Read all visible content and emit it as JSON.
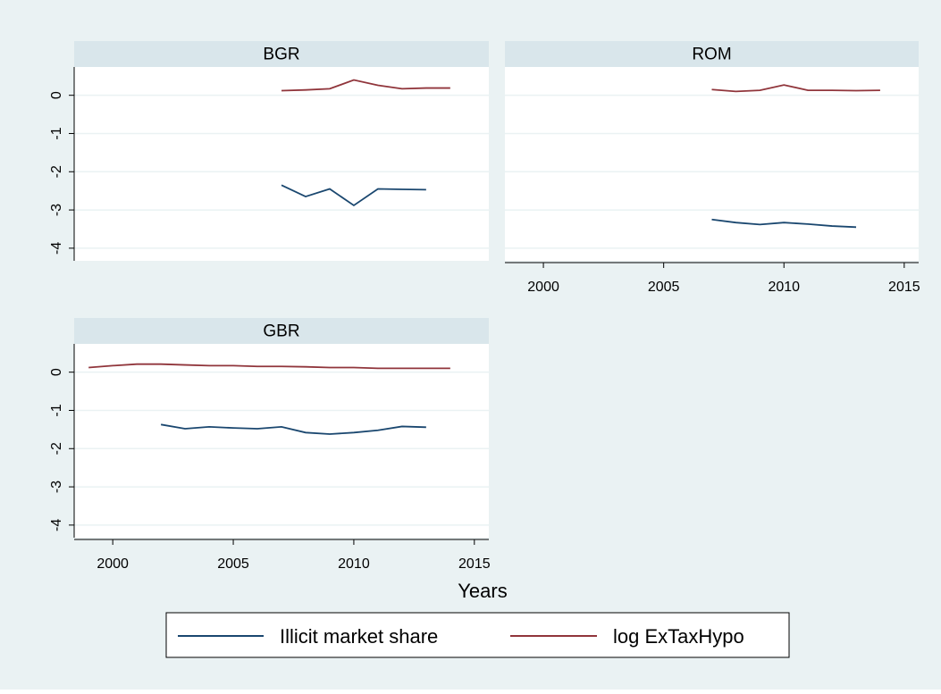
{
  "chart_data": [
    {
      "type": "line",
      "title": "BGR",
      "x": [
        2007,
        2008,
        2009,
        2010,
        2011,
        2012,
        2013,
        2014
      ],
      "series": [
        {
          "name": "Illicit market share",
          "color": "#1a476f",
          "values": [
            -2.35,
            -2.65,
            -2.45,
            -2.88,
            -2.45,
            -2.46,
            -2.47,
            null
          ]
        },
        {
          "name": "log ExTaxHypo",
          "color": "#90353b",
          "values": [
            0.12,
            0.14,
            0.17,
            0.4,
            0.26,
            0.17,
            0.19,
            0.19
          ]
        }
      ],
      "xlim": [
        1998.4,
        2015.6
      ],
      "ylim": [
        -4.33,
        0.74
      ],
      "yticks": [
        0,
        -1,
        -2,
        -3,
        -4
      ],
      "grid": true
    },
    {
      "type": "line",
      "title": "ROM",
      "x": [
        2007,
        2008,
        2009,
        2010,
        2011,
        2012,
        2013,
        2014
      ],
      "series": [
        {
          "name": "Illicit market share",
          "color": "#1a476f",
          "values": [
            -3.25,
            -3.33,
            -3.38,
            -3.33,
            -3.37,
            -3.42,
            -3.45,
            null
          ]
        },
        {
          "name": "log ExTaxHypo",
          "color": "#90353b",
          "values": [
            0.15,
            0.1,
            0.13,
            0.27,
            0.13,
            0.13,
            0.12,
            0.13
          ]
        }
      ],
      "xlim": [
        1998.4,
        2015.6
      ],
      "xticks": [
        2000,
        2005,
        2010,
        2015
      ],
      "ylim": [
        -4.33,
        0.74
      ],
      "yticks": [
        0,
        -1,
        -2,
        -3,
        -4
      ],
      "grid": true
    },
    {
      "type": "line",
      "title": "GBR",
      "xlabel": "Years",
      "x": [
        1999,
        2000,
        2001,
        2002,
        2003,
        2004,
        2005,
        2006,
        2007,
        2008,
        2009,
        2010,
        2011,
        2012,
        2013,
        2014
      ],
      "series": [
        {
          "name": "Illicit market share",
          "color": "#1a476f",
          "values": [
            null,
            null,
            null,
            -1.37,
            -1.48,
            -1.43,
            -1.46,
            -1.48,
            -1.43,
            -1.58,
            -1.62,
            -1.58,
            -1.52,
            -1.42,
            -1.44,
            null
          ]
        },
        {
          "name": "log ExTaxHypo",
          "color": "#90353b",
          "values": [
            0.12,
            0.17,
            0.21,
            0.21,
            0.19,
            0.17,
            0.17,
            0.15,
            0.15,
            0.14,
            0.12,
            0.12,
            0.1,
            0.1,
            0.1,
            0.1
          ]
        }
      ],
      "xlim": [
        1998.4,
        2015.6
      ],
      "xticks": [
        2000,
        2005,
        2010,
        2015
      ],
      "ylim": [
        -4.33,
        0.74
      ],
      "yticks": [
        0,
        -1,
        -2,
        -3,
        -4
      ],
      "grid": true
    }
  ]
}
